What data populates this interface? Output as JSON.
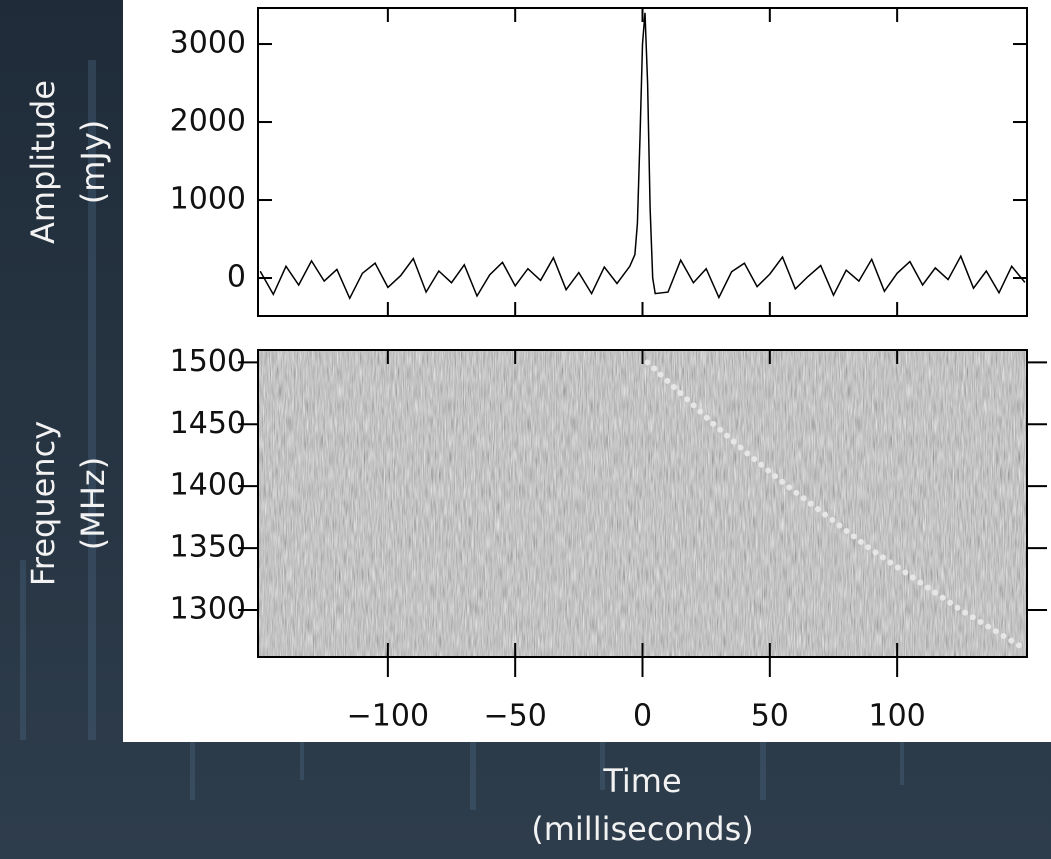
{
  "chart_data": [
    {
      "type": "line",
      "y_label": [
        "Amplitude",
        "(mJy)"
      ],
      "xlim": [
        -151,
        151
      ],
      "ylim": [
        -487,
        3462
      ],
      "yticks": [
        0,
        1000,
        2000,
        3000
      ],
      "series": [
        {
          "color": "#000000",
          "x": [
            -150,
            -145,
            -140,
            -135,
            -130,
            -125,
            -120,
            -115,
            -110,
            -105,
            -100,
            -95,
            -90,
            -85,
            -80,
            -75,
            -70,
            -65,
            -60,
            -55,
            -50,
            -45,
            -40,
            -35,
            -30,
            -25,
            -20,
            -15,
            -10,
            -5,
            -3,
            -2,
            -1,
            0,
            1,
            2,
            3,
            4,
            5,
            10,
            15,
            20,
            25,
            30,
            35,
            40,
            45,
            50,
            55,
            60,
            65,
            70,
            75,
            80,
            85,
            90,
            95,
            100,
            105,
            110,
            115,
            120,
            125,
            130,
            135,
            140,
            145,
            150
          ],
          "values": [
            80,
            -210,
            150,
            -90,
            220,
            -40,
            110,
            -260,
            60,
            190,
            -120,
            30,
            250,
            -180,
            90,
            -60,
            170,
            -230,
            40,
            200,
            -100,
            120,
            -30,
            260,
            -150,
            70,
            -200,
            140,
            -70,
            150,
            300,
            700,
            1800,
            3000,
            3400,
            2500,
            900,
            0,
            -200,
            -180,
            230,
            -60,
            120,
            -250,
            80,
            190,
            -110,
            50,
            270,
            -140,
            20,
            160,
            -220,
            100,
            -40,
            240,
            -170,
            60,
            210,
            -90,
            130,
            -20,
            280,
            -130,
            90,
            -190,
            150,
            -50
          ]
        }
      ]
    },
    {
      "type": "line",
      "y_label": [
        "Frequency",
        "(MHz)"
      ],
      "x_label": [
        "Time",
        "(milliseconds)"
      ],
      "xlim": [
        -151,
        151
      ],
      "ylim": [
        1262,
        1510
      ],
      "xticks": [
        {
          "value": -100,
          "label": "−100"
        },
        {
          "value": -50,
          "label": "−50"
        },
        0,
        50,
        100
      ],
      "yticks": [
        1300,
        1350,
        1400,
        1450,
        1500
      ],
      "series": [
        {
          "color": "#e6e6e6",
          "x": [
            2,
            15,
            28,
            42,
            57,
            73,
            89,
            107,
            125,
            145,
            149
          ],
          "values": [
            1500,
            1475,
            1450,
            1425,
            1400,
            1375,
            1350,
            1325,
            1300,
            1275,
            1270
          ]
        }
      ]
    }
  ]
}
